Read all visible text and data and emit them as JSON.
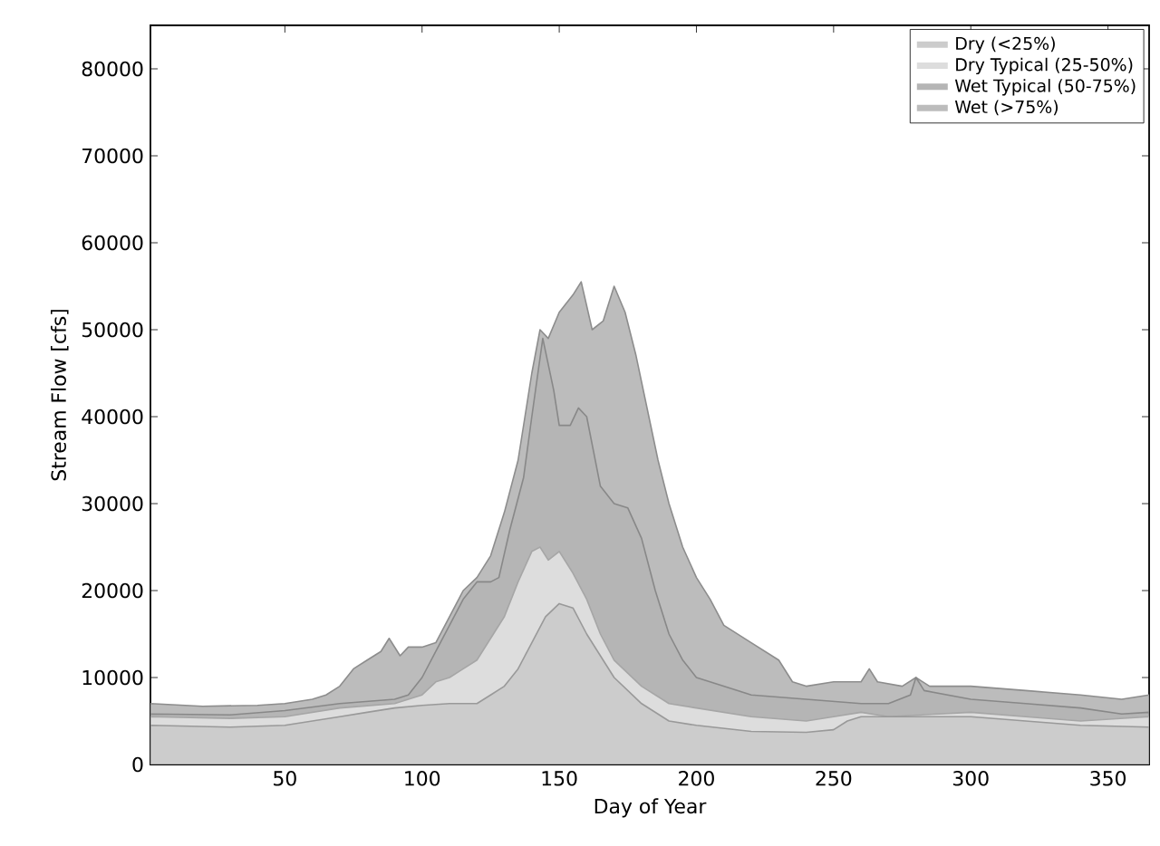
{
  "chart_data": {
    "type": "area",
    "xlabel": "Day of Year",
    "ylabel": "Stream Flow [cfs]",
    "xlim": [
      1,
      365
    ],
    "ylim": [
      0,
      85000
    ],
    "xticks": [
      50,
      100,
      150,
      200,
      250,
      300,
      350
    ],
    "yticks": [
      0,
      10000,
      20000,
      30000,
      40000,
      50000,
      60000,
      70000,
      80000
    ],
    "legend": "top right",
    "grid": false,
    "series": [
      {
        "name": "Dry (<25%)",
        "color": "#cccccc",
        "x": [
          1,
          30,
          50,
          60,
          70,
          80,
          90,
          100,
          110,
          120,
          125,
          130,
          135,
          140,
          145,
          150,
          155,
          160,
          165,
          170,
          180,
          190,
          200,
          220,
          240,
          250,
          255,
          260,
          280,
          300,
          320,
          340,
          365
        ],
        "values": [
          4500,
          4300,
          4500,
          5000,
          5500,
          6000,
          6500,
          6800,
          7000,
          7000,
          8000,
          9000,
          11000,
          14000,
          17000,
          18500,
          18000,
          15000,
          12500,
          10000,
          7000,
          5000,
          4500,
          3800,
          3700,
          4000,
          5000,
          5500,
          5500,
          5500,
          5000,
          4500,
          4300
        ]
      },
      {
        "name": "Dry Typical (25-50%)",
        "color": "#dddddd",
        "x": [
          1,
          30,
          50,
          70,
          90,
          100,
          105,
          110,
          120,
          130,
          135,
          140,
          143,
          146,
          150,
          155,
          160,
          165,
          170,
          180,
          190,
          200,
          220,
          240,
          250,
          260,
          270,
          300,
          320,
          340,
          365
        ],
        "values": [
          5500,
          5300,
          5500,
          6500,
          7000,
          8000,
          9500,
          10000,
          12000,
          17000,
          21000,
          24500,
          25000,
          23500,
          24500,
          22000,
          19000,
          15000,
          12000,
          9000,
          7000,
          6500,
          5500,
          5000,
          5500,
          6000,
          5500,
          6000,
          5500,
          5000,
          5500
        ]
      },
      {
        "name": "Wet Typical (50-75%)",
        "color": "#b5b5b5",
        "x": [
          1,
          30,
          50,
          70,
          90,
          95,
          100,
          105,
          110,
          115,
          120,
          125,
          128,
          132,
          137,
          140,
          144,
          148,
          150,
          154,
          157,
          160,
          165,
          170,
          175,
          180,
          185,
          190,
          195,
          200,
          210,
          220,
          240,
          260,
          270,
          278,
          280,
          283,
          300,
          320,
          340,
          355,
          365
        ],
        "values": [
          5800,
          5700,
          6200,
          7000,
          7500,
          8000,
          10000,
          13000,
          16000,
          19000,
          21000,
          21000,
          21500,
          27000,
          33000,
          40000,
          49000,
          43000,
          39000,
          39000,
          41000,
          40000,
          32000,
          30000,
          29500,
          26000,
          20000,
          15000,
          12000,
          10000,
          9000,
          8000,
          7500,
          7000,
          7000,
          8000,
          10000,
          8500,
          7500,
          7000,
          6500,
          5800,
          6000
        ]
      },
      {
        "name": "Wet (>75%)",
        "color": "#bcbcbc",
        "x": [
          1,
          20,
          40,
          50,
          60,
          65,
          70,
          75,
          80,
          85,
          88,
          92,
          95,
          100,
          105,
          110,
          115,
          120,
          125,
          130,
          135,
          140,
          143,
          146,
          150,
          155,
          158,
          162,
          166,
          170,
          174,
          178,
          182,
          186,
          190,
          195,
          200,
          205,
          210,
          220,
          230,
          235,
          240,
          250,
          260,
          263,
          266,
          275,
          280,
          285,
          300,
          320,
          340,
          355,
          365
        ],
        "values": [
          7000,
          6700,
          6800,
          7000,
          7500,
          8000,
          9000,
          11000,
          12000,
          13000,
          14500,
          12500,
          13500,
          13500,
          14000,
          17000,
          20000,
          21500,
          24000,
          29000,
          35000,
          45000,
          50000,
          49000,
          52000,
          54000,
          55500,
          50000,
          51000,
          55000,
          52000,
          47000,
          41000,
          35000,
          30000,
          25000,
          21500,
          19000,
          16000,
          14000,
          12000,
          9500,
          9000,
          9500,
          9500,
          11000,
          9500,
          9000,
          10000,
          9000,
          9000,
          8500,
          8000,
          7500,
          8000
        ]
      }
    ]
  }
}
